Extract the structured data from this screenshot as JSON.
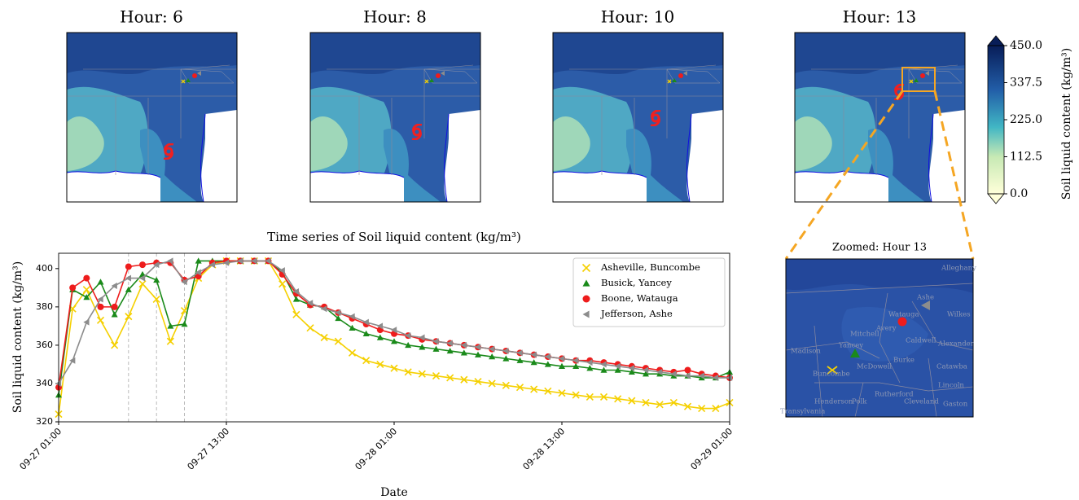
{
  "maps": {
    "titles": [
      "Hour: 6",
      "Hour: 8",
      "Hour: 10",
      "Hour: 13"
    ]
  },
  "colorbar": {
    "label": "Soil liquid content (kg/m³)",
    "clim": [
      0,
      450
    ],
    "ticks": [
      {
        "value": 0,
        "label": "0.0"
      },
      {
        "value": 112.5,
        "label": "112.5"
      },
      {
        "value": 225,
        "label": "225.0"
      },
      {
        "value": 337.5,
        "label": "337.5"
      },
      {
        "value": 450,
        "label": "450.0"
      }
    ]
  },
  "zoom": {
    "title": "Zoomed: Hour 13",
    "labels": [
      "Alleghany",
      "Ashe",
      "Wilkes",
      "Watauga",
      "Avery",
      "Mitchell",
      "Caldwell",
      "Alexander",
      "Madison",
      "Yancey",
      "Burke",
      "Buncombe",
      "McDowell",
      "Catawba",
      "Lincoln",
      "Rutherford",
      "Henderson",
      "Polk",
      "Cleveland",
      "Gaston",
      "Transylvania"
    ]
  },
  "chart_data": {
    "type": "line",
    "title": "Time series of Soil liquid content (kg/m³)",
    "x_label": "Date",
    "y_label": "Soil liquid content (kg/m³)",
    "x": [
      "09-27 01:00",
      "09-27 02:00",
      "09-27 03:00",
      "09-27 04:00",
      "09-27 05:00",
      "09-27 06:00",
      "09-27 07:00",
      "09-27 08:00",
      "09-27 09:00",
      "09-27 10:00",
      "09-27 11:00",
      "09-27 12:00",
      "09-27 13:00",
      "09-27 14:00",
      "09-27 15:00",
      "09-27 16:00",
      "09-27 17:00",
      "09-27 18:00",
      "09-27 19:00",
      "09-27 20:00",
      "09-27 21:00",
      "09-27 22:00",
      "09-27 23:00",
      "09-28 00:00",
      "09-28 01:00",
      "09-28 02:00",
      "09-28 03:00",
      "09-28 04:00",
      "09-28 05:00",
      "09-28 06:00",
      "09-28 07:00",
      "09-28 08:00",
      "09-28 09:00",
      "09-28 10:00",
      "09-28 11:00",
      "09-28 12:00",
      "09-28 13:00",
      "09-28 14:00",
      "09-28 15:00",
      "09-28 16:00",
      "09-28 17:00",
      "09-28 18:00",
      "09-28 19:00",
      "09-28 20:00",
      "09-28 21:00",
      "09-28 22:00",
      "09-28 23:00",
      "09-29 00:00",
      "09-29 01:00"
    ],
    "xticks": [
      "09-27 01:00",
      "09-27 13:00",
      "09-28 01:00",
      "09-28 13:00",
      "09-29 01:00"
    ],
    "vlines": [
      "09-27 06:00",
      "09-27 08:00",
      "09-27 10:00",
      "09-27 13:00"
    ],
    "ylim": [
      320,
      408
    ],
    "yticks": [
      320,
      340,
      360,
      380,
      400
    ],
    "grid": false,
    "legend": "upper right",
    "series": [
      {
        "name": "Asheville, Buncombe",
        "color": "#f5d000",
        "marker": "x",
        "values": [
          324,
          379,
          389,
          373,
          360,
          375,
          392,
          384,
          362,
          378,
          395,
          402,
          404,
          404,
          404,
          404,
          392,
          376,
          369,
          364,
          362,
          356,
          352,
          350,
          348,
          346,
          345,
          344,
          343,
          342,
          341,
          340,
          339,
          338,
          337,
          336,
          335,
          334,
          333,
          333,
          332,
          331,
          330,
          329,
          330,
          328,
          327,
          327,
          330
        ]
      },
      {
        "name": "Busick, Yancey",
        "color": "#1a8a1a",
        "marker": "^",
        "values": [
          334,
          389,
          385,
          393,
          376,
          389,
          397,
          394,
          370,
          371,
          404,
          404,
          404,
          404,
          404,
          404,
          398,
          384,
          381,
          380,
          374,
          369,
          366,
          364,
          362,
          360,
          359,
          358,
          357,
          356,
          355,
          354,
          353,
          352,
          351,
          350,
          349,
          349,
          348,
          347,
          347,
          346,
          345,
          345,
          344,
          344,
          343,
          343,
          346
        ]
      },
      {
        "name": "Boone, Watauga",
        "color": "#ee1c1c",
        "marker": "o",
        "values": [
          338,
          390,
          395,
          380,
          380,
          401,
          402,
          403,
          403,
          394,
          396,
          403,
          404,
          404,
          404,
          404,
          397,
          387,
          381,
          380,
          377,
          374,
          371,
          368,
          366,
          365,
          363,
          362,
          361,
          360,
          359,
          358,
          357,
          356,
          355,
          354,
          353,
          352,
          352,
          351,
          350,
          349,
          348,
          347,
          346,
          347,
          345,
          344,
          343
        ]
      },
      {
        "name": "Jefferson, Ashe",
        "color": "#8c8c8c",
        "marker": "<",
        "values": [
          340,
          352,
          372,
          384,
          391,
          395,
          395,
          402,
          404,
          393,
          398,
          402,
          403,
          404,
          404,
          404,
          399,
          388,
          382,
          379,
          377,
          375,
          372,
          370,
          368,
          365,
          364,
          362,
          361,
          360,
          359,
          358,
          357,
          356,
          355,
          354,
          353,
          352,
          351,
          350,
          349,
          348,
          347,
          346,
          345,
          344,
          344,
          343,
          343
        ]
      }
    ]
  }
}
